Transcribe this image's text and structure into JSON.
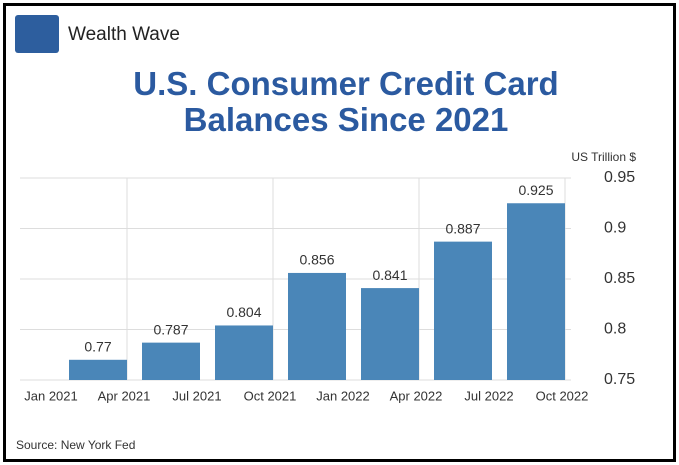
{
  "brand": "Wealth Wave",
  "chart_data": {
    "type": "bar",
    "title": "U.S. Consumer Credit Card Balances Since 2021",
    "y_axis_label": "US Trillion $",
    "categories": [
      "Jan 2021",
      "Apr 2021",
      "Jul 2021",
      "Oct 2021",
      "Jan 2022",
      "Apr 2022",
      "Jul 2022",
      "Oct 2022"
    ],
    "values": [
      null,
      0.77,
      0.787,
      0.804,
      0.856,
      0.841,
      0.887,
      0.925
    ],
    "color": "#4a86b8",
    "ylim": [
      0.75,
      0.95
    ],
    "yticks": [
      0.75,
      0.8,
      0.85,
      0.9,
      0.95
    ],
    "grid": true,
    "source": "Source: New York Fed"
  }
}
